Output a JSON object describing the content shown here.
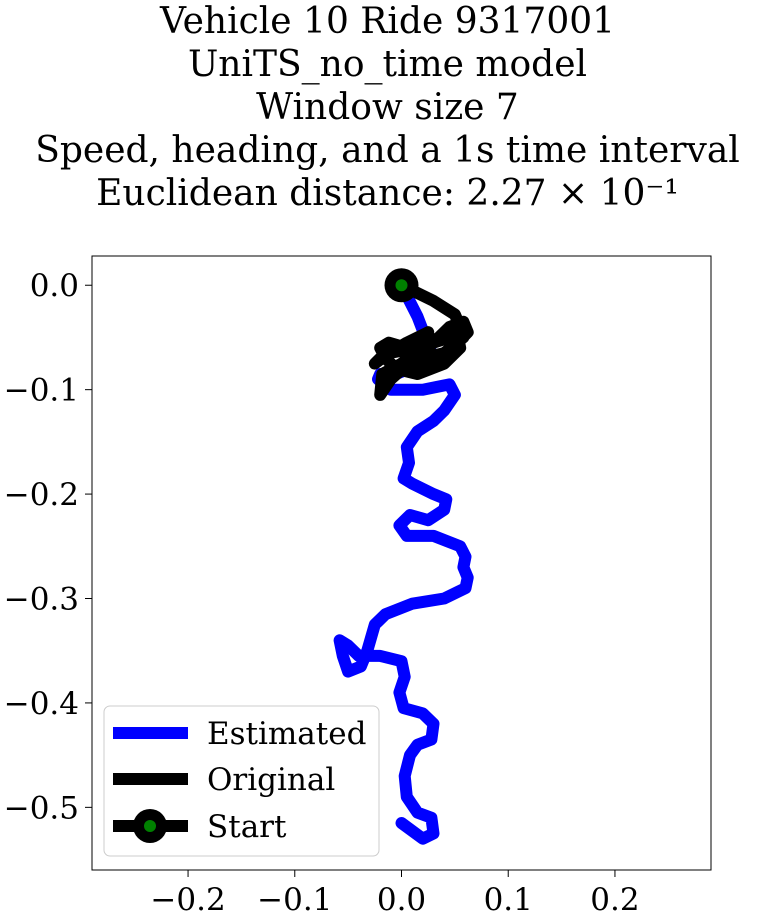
{
  "chart_data": {
    "type": "line",
    "title_lines": [
      "Vehicle 10 Ride 9317001",
      "UniTS_no_time model",
      "Window size 7",
      "Speed, heading, and a 1s time interval",
      "Euclidean distance: 2.27 × 10⁻¹"
    ],
    "xlabel": "",
    "ylabel": "",
    "xlim": [
      -0.29,
      0.29
    ],
    "ylim": [
      -0.56,
      0.028
    ],
    "xticks": [
      -0.2,
      -0.1,
      0.0,
      0.1,
      0.2
    ],
    "xtick_labels": [
      "−0.2",
      "−0.1",
      "0.0",
      "0.1",
      "0.2"
    ],
    "yticks": [
      0.0,
      -0.1,
      -0.2,
      -0.3,
      -0.4,
      -0.5
    ],
    "ytick_labels": [
      "0.0",
      "−0.1",
      "−0.2",
      "−0.3",
      "−0.4",
      "−0.5"
    ],
    "grid": false,
    "legend_position": "lower-left",
    "series": [
      {
        "name": "Estimated",
        "color": "#0000ff",
        "x": [
          0.0,
          0.015,
          0.03,
          -0.005,
          -0.02,
          -0.022,
          -0.01,
          0.02,
          0.045,
          0.05,
          0.04,
          0.03,
          0.015,
          0.005,
          0.007,
          0.002,
          0.01,
          0.03,
          0.042,
          0.04,
          0.025,
          0.008,
          -0.002,
          0.005,
          0.03,
          0.055,
          0.06,
          0.058,
          0.062,
          0.06,
          0.04,
          0.01,
          -0.015,
          -0.025,
          -0.032,
          -0.038,
          -0.05,
          -0.055,
          -0.058,
          -0.05,
          -0.04,
          -0.02,
          0.0,
          0.003,
          -0.002,
          0.002,
          0.02,
          0.03,
          0.028,
          0.015,
          0.008,
          0.003,
          0.005,
          0.015,
          0.028,
          0.03,
          0.02,
          0.0
        ],
        "y": [
          0.0,
          -0.03,
          -0.07,
          -0.085,
          -0.085,
          -0.09,
          -0.1,
          -0.1,
          -0.095,
          -0.105,
          -0.12,
          -0.13,
          -0.14,
          -0.155,
          -0.17,
          -0.185,
          -0.19,
          -0.2,
          -0.205,
          -0.215,
          -0.225,
          -0.22,
          -0.23,
          -0.24,
          -0.24,
          -0.25,
          -0.26,
          -0.27,
          -0.28,
          -0.29,
          -0.3,
          -0.305,
          -0.315,
          -0.325,
          -0.35,
          -0.365,
          -0.37,
          -0.355,
          -0.34,
          -0.345,
          -0.355,
          -0.355,
          -0.36,
          -0.375,
          -0.39,
          -0.405,
          -0.41,
          -0.42,
          -0.435,
          -0.44,
          -0.45,
          -0.47,
          -0.49,
          -0.505,
          -0.51,
          -0.525,
          -0.53,
          -0.515
        ]
      },
      {
        "name": "Original",
        "color": "#000000",
        "x": [
          0.0,
          0.03,
          0.05,
          0.055,
          0.045,
          0.015,
          -0.012,
          -0.025,
          -0.02,
          0.005,
          0.025,
          0.02,
          0.0,
          -0.018,
          -0.02,
          -0.01,
          0.012,
          0.03,
          0.045,
          0.058,
          0.062,
          0.048,
          0.025,
          0.008,
          0.012,
          0.035,
          0.052,
          0.055,
          0.04,
          0.015,
          -0.005,
          -0.015,
          -0.02,
          -0.012,
          0.005,
          0.02,
          0.04,
          0.058,
          0.06
        ],
        "y": [
          0.0,
          -0.015,
          -0.028,
          -0.04,
          -0.05,
          -0.06,
          -0.065,
          -0.075,
          -0.07,
          -0.055,
          -0.045,
          -0.06,
          -0.075,
          -0.085,
          -0.105,
          -0.09,
          -0.07,
          -0.055,
          -0.04,
          -0.035,
          -0.045,
          -0.06,
          -0.075,
          -0.08,
          -0.065,
          -0.05,
          -0.045,
          -0.06,
          -0.075,
          -0.085,
          -0.08,
          -0.07,
          -0.06,
          -0.055,
          -0.06,
          -0.07,
          -0.065,
          -0.05,
          -0.045
        ]
      }
    ],
    "start_point": {
      "name": "Start",
      "x": 0.0,
      "y": 0.0,
      "marker_color": "#008000",
      "edge_color": "#000000"
    }
  }
}
